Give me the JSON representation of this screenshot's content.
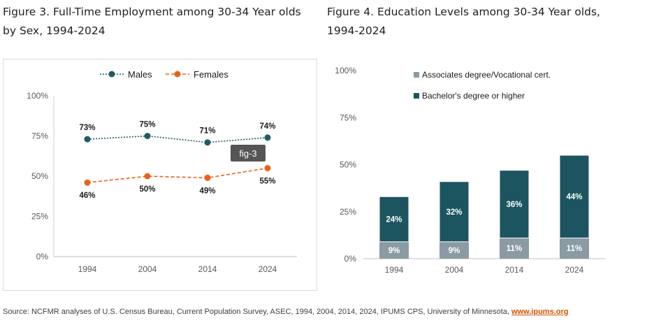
{
  "figure3": {
    "title": "Figure 3. Full-Time Employment among 30-34 Year olds by Sex, 1994-2024",
    "badge": "fig-3",
    "chart_data": {
      "type": "line",
      "x": [
        "1994",
        "2004",
        "2014",
        "2024"
      ],
      "series": [
        {
          "name": "Males",
          "values": [
            73,
            75,
            71,
            74
          ],
          "labels": [
            "73%",
            "75%",
            "71%",
            "74%"
          ],
          "color": "#1f5c66",
          "style": "dotted"
        },
        {
          "name": "Females",
          "values": [
            46,
            50,
            49,
            55
          ],
          "labels": [
            "46%",
            "50%",
            "49%",
            "55%"
          ],
          "color": "#e8621a",
          "style": "dashed"
        }
      ],
      "ylim": [
        0,
        100
      ],
      "yticks": [
        "0%",
        "25%",
        "50%",
        "75%",
        "100%"
      ],
      "ytick_values": [
        0,
        25,
        50,
        75,
        100
      ],
      "legend": "top"
    }
  },
  "figure4": {
    "title": "Figure 4. Education Levels among 30-34 Year olds, 1994-2024",
    "chart_data": {
      "type": "bar",
      "stacked": true,
      "categories": [
        "1994",
        "2004",
        "2014",
        "2024"
      ],
      "series": [
        {
          "name": "Associates degree/Vocational cert.",
          "values": [
            9,
            9,
            11,
            11
          ],
          "labels": [
            "9%",
            "9%",
            "11%",
            "11%"
          ],
          "color": "#8a9ba3"
        },
        {
          "name": "Bachelor's degree or higher",
          "values": [
            24,
            32,
            36,
            44
          ],
          "labels": [
            "24%",
            "32%",
            "36%",
            "44%"
          ],
          "color": "#1c5560"
        }
      ],
      "ylim": [
        0,
        100
      ],
      "yticks": [
        "0%",
        "25%",
        "50%",
        "75%",
        "100%"
      ],
      "ytick_values": [
        0,
        25,
        50,
        75,
        100
      ],
      "legend": "top-left"
    }
  },
  "source": {
    "text": "Source: NCFMR analyses of U.S. Census Bureau, Current Population Survey, ASEC, 1994, 2004, 2014, 2024, IPUMS CPS, University of Minnesota, ",
    "link": "www.ipums.org"
  }
}
